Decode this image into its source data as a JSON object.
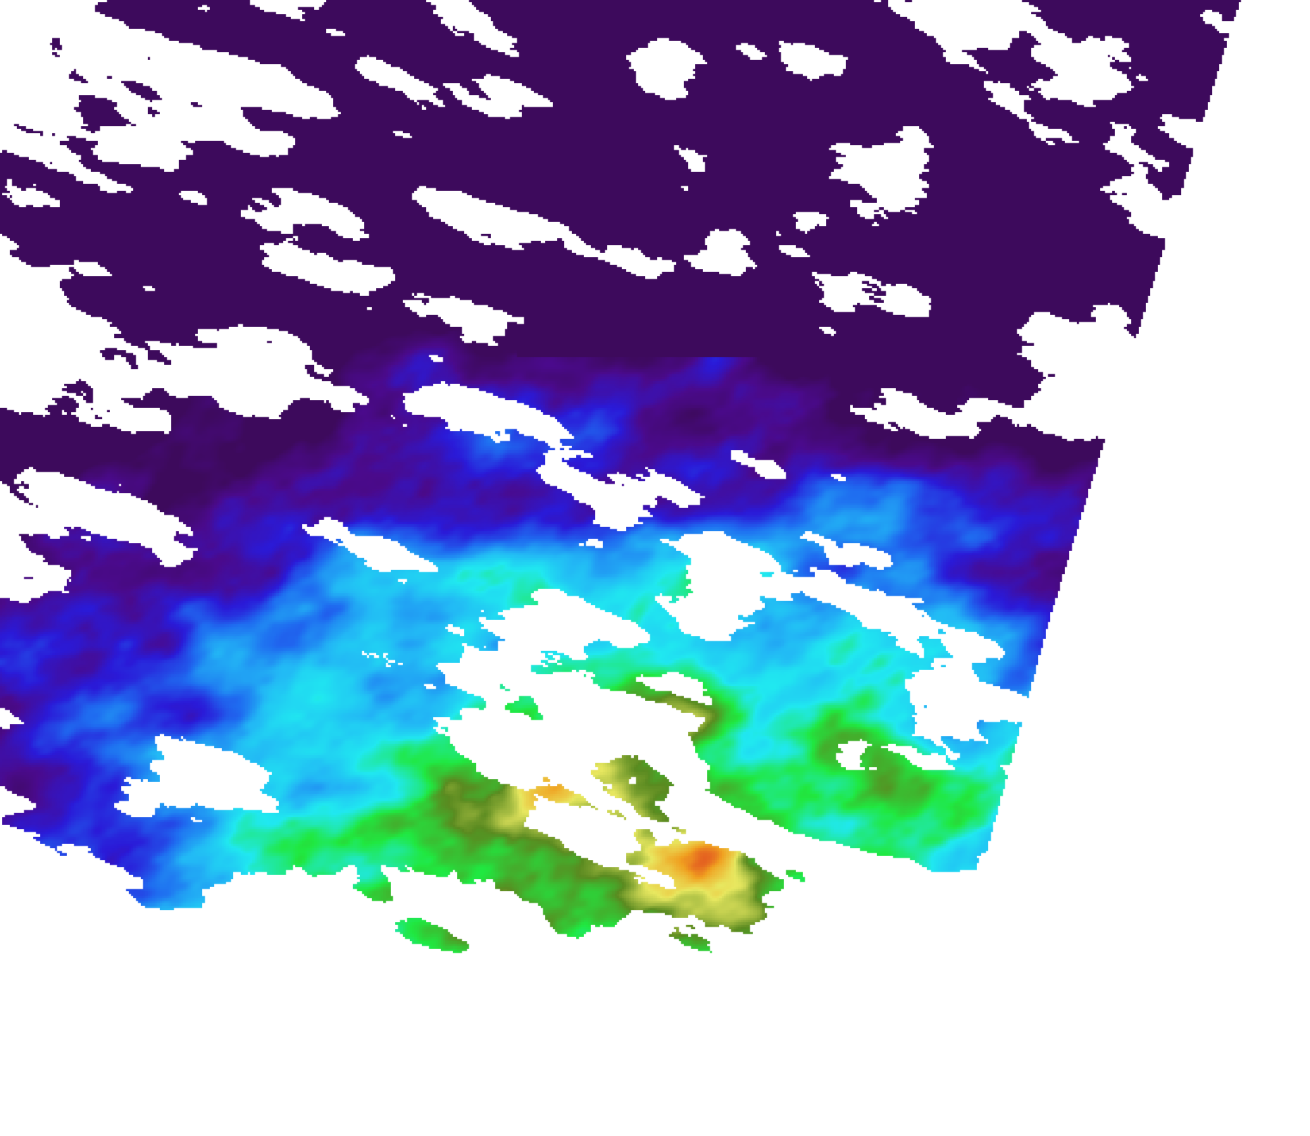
{
  "map": {
    "kind": "satellite swath color-coded field with cloud mask",
    "background_color": "#ffffff",
    "cloud_color": "#ffffff",
    "palette": [
      "#3d0a5c",
      "#4a0a8c",
      "#2a1ad8",
      "#1f6cf0",
      "#22b8f5",
      "#20e8f0",
      "#20e840",
      "#5a8a20",
      "#e8e860",
      "#f0a020",
      "#d82020"
    ]
  }
}
